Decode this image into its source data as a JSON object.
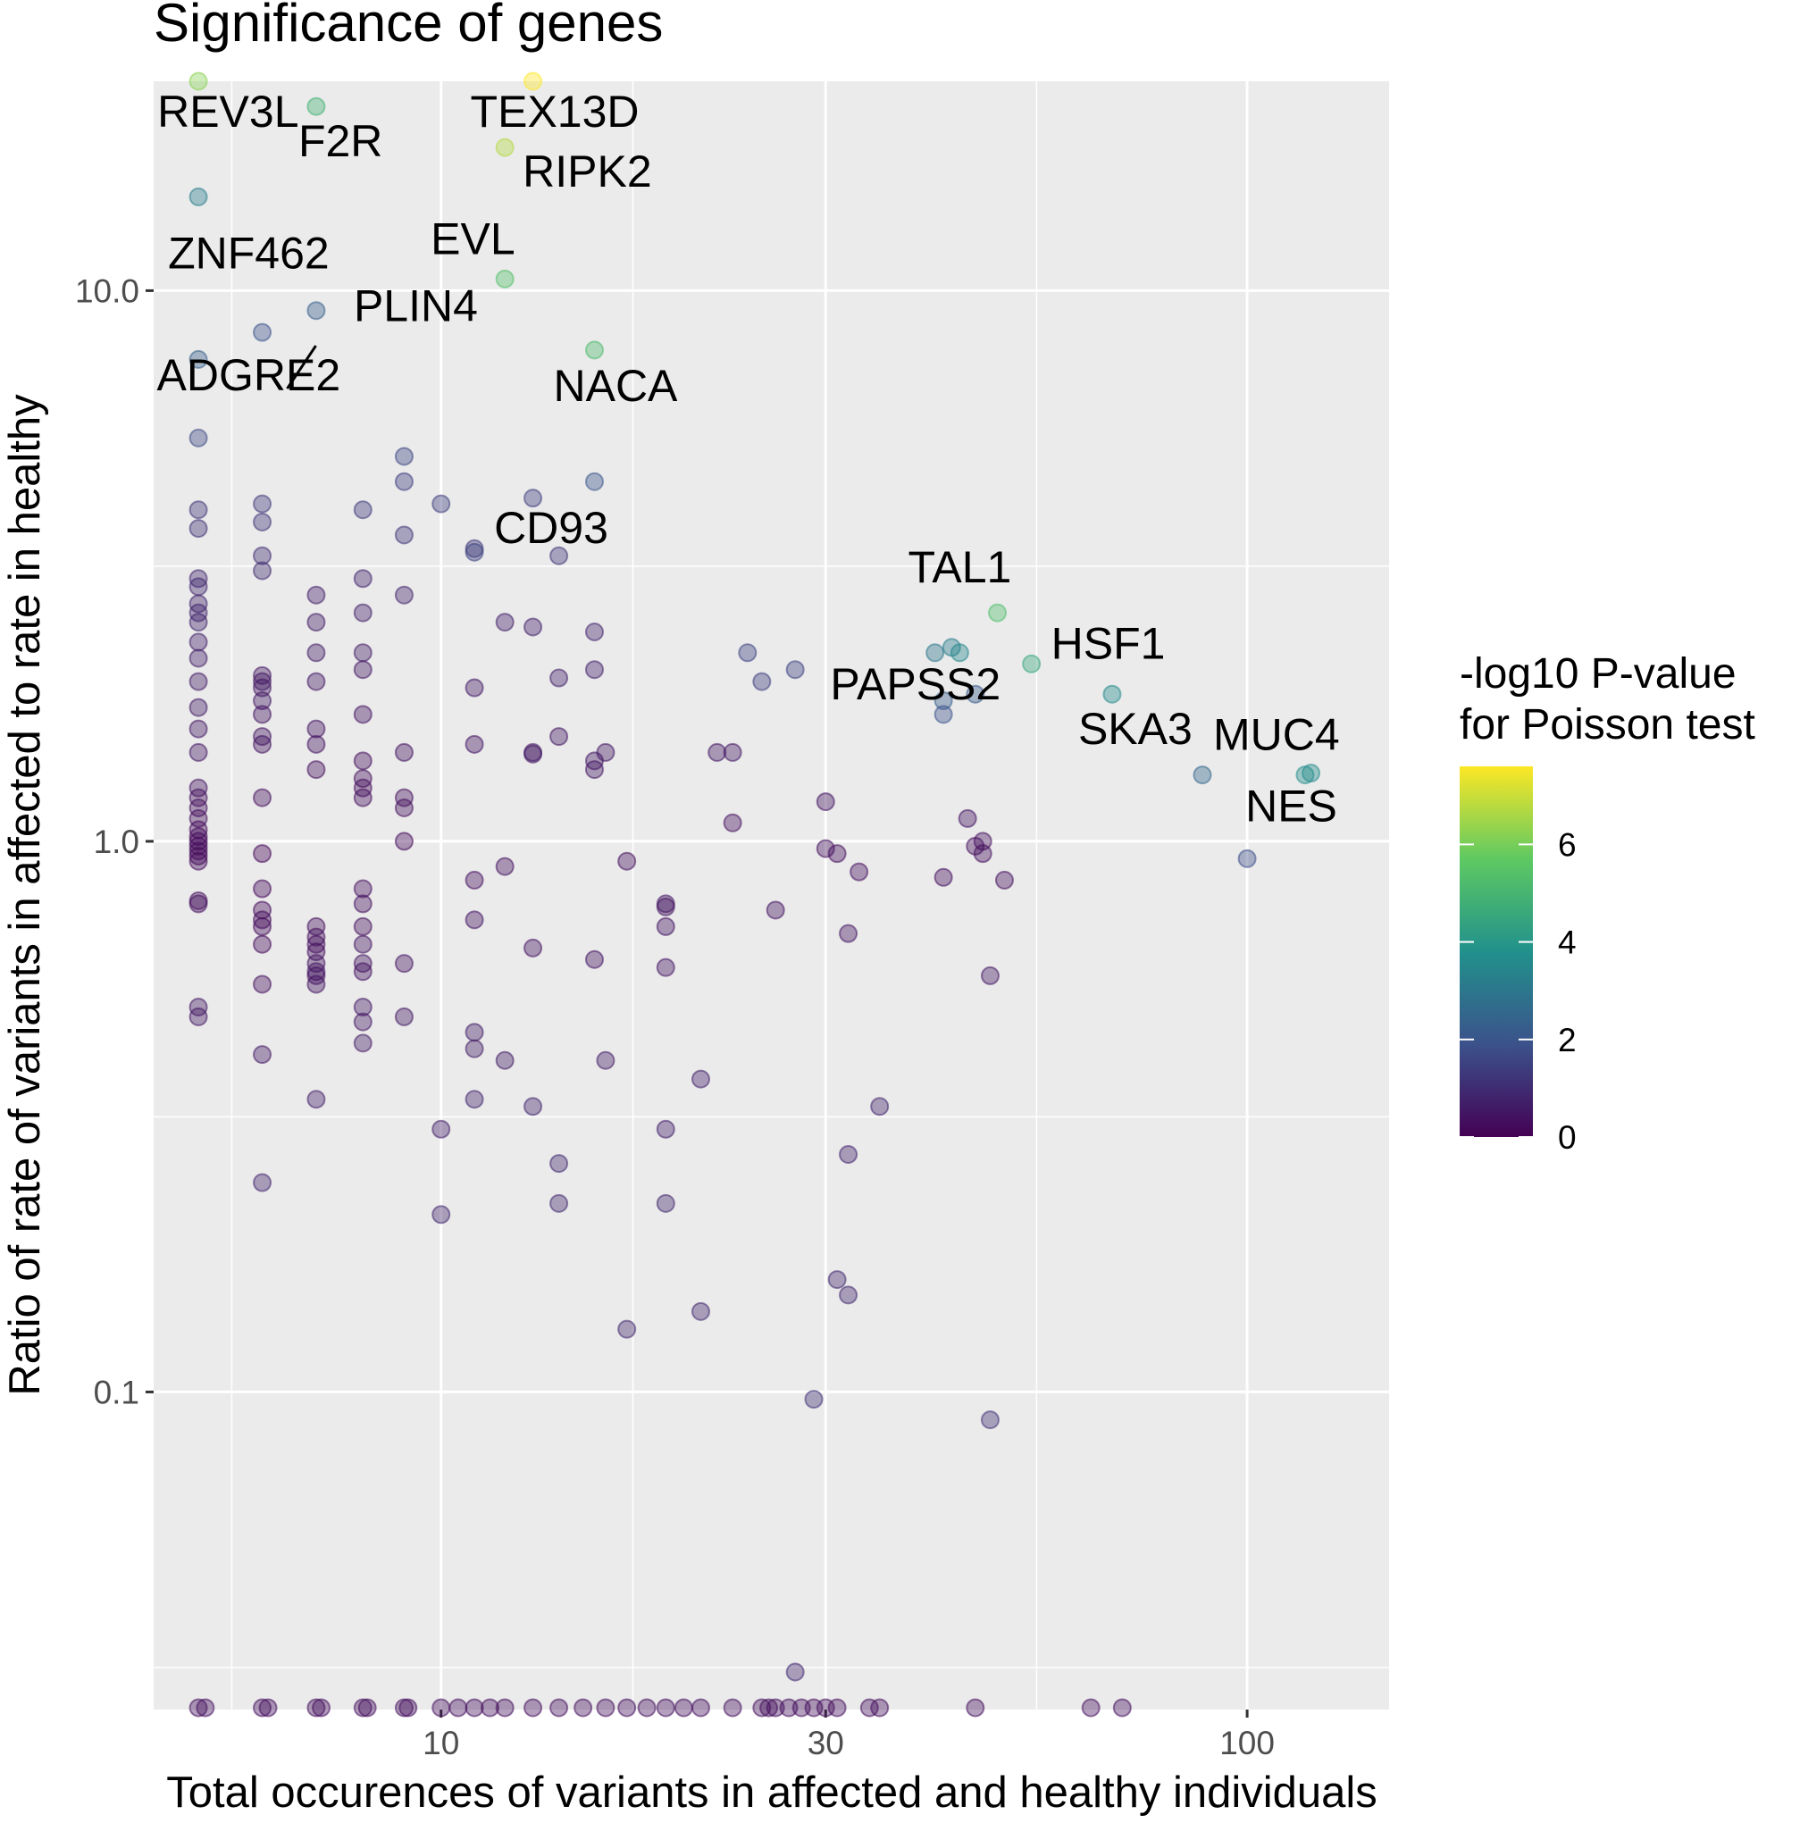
{
  "chart_data": {
    "type": "scatter",
    "title": "Significance of genes",
    "xlabel": "Total occurences of variants in affected and healthy individuals",
    "ylabel": "Ratio of rate of variants in affected to rate in healthy",
    "x_scale": "log10",
    "y_scale": "log10",
    "xlim": [
      4.4,
      150
    ],
    "ylim": [
      0.0265,
      24
    ],
    "x_ticks": [
      {
        "value": 10,
        "label": "10"
      },
      {
        "value": 30,
        "label": "30"
      },
      {
        "value": 100,
        "label": "100"
      }
    ],
    "y_ticks": [
      {
        "value": 0.1,
        "label": "0.1"
      },
      {
        "value": 1.0,
        "label": "1.0"
      },
      {
        "value": 10.0,
        "label": "10.0"
      }
    ],
    "x_minor_gridlines": [
      5.5,
      17.3,
      54.8
    ],
    "y_minor_gridlines": [
      0.0316,
      0.316,
      3.16
    ],
    "grid": true,
    "legend": {
      "title": "-log10 P-value\nfor Poisson test",
      "placement": "right",
      "type": "colorbar",
      "range": [
        0,
        7.6
      ],
      "ticks": [
        {
          "value": 0,
          "label": "0"
        },
        {
          "value": 2,
          "label": "2"
        },
        {
          "value": 4,
          "label": "4"
        },
        {
          "value": 6,
          "label": "6"
        }
      ],
      "colormap": [
        "#440154",
        "#3b528b",
        "#21918c",
        "#5ec962",
        "#fde725"
      ]
    },
    "floor_y": 0.0265,
    "floor_x": [
      5,
      5.1,
      6,
      6.1,
      7,
      7.1,
      8,
      8.1,
      9,
      9.1,
      10,
      10.5,
      11,
      11.5,
      12,
      13,
      14,
      15,
      16,
      17,
      18,
      19,
      20,
      21,
      23,
      25,
      25.5,
      26,
      27,
      28,
      29,
      30,
      31,
      34,
      35,
      46,
      64,
      70
    ],
    "labeled_points": [
      {
        "gene": "REV3L",
        "x": 5.0,
        "y": 24.0,
        "p": 6.2
      },
      {
        "gene": "TEX13D",
        "x": 13.0,
        "y": 24.0,
        "p": 7.6
      },
      {
        "gene": "F2R",
        "x": 7.0,
        "y": 21.6,
        "p": 4.9
      },
      {
        "gene": "RIPK2",
        "x": 12.0,
        "y": 18.2,
        "p": 6.7
      },
      {
        "gene": "ZNF462",
        "x": 5.0,
        "y": 14.8,
        "p": 3.2
      },
      {
        "gene": "EVL",
        "x": 12.0,
        "y": 10.5,
        "p": 5.4
      },
      {
        "gene": "PLIN4",
        "x": 7.0,
        "y": 9.2,
        "p": 2.3
      },
      {
        "gene": "ADGRE2",
        "x": 6.0,
        "y": 8.4,
        "p": 1.9
      },
      {
        "gene": "NACA",
        "x": 15.5,
        "y": 7.8,
        "p": 5.2
      },
      {
        "gene": "CD93",
        "x": 11.0,
        "y": 3.35,
        "p": 1.5
      },
      {
        "gene": "TAL1",
        "x": 49.0,
        "y": 2.6,
        "p": 5.3
      },
      {
        "gene": "HSF1",
        "x": 54.0,
        "y": 2.1,
        "p": 4.5
      },
      {
        "gene": "PAPSS2",
        "x": 44.0,
        "y": 2.2,
        "p": 3.5
      },
      {
        "gene": "SKA3",
        "x": 68.0,
        "y": 1.85,
        "p": 3.6
      },
      {
        "gene": "MUC4",
        "x": 118.0,
        "y": 1.32,
        "p": 3.7
      },
      {
        "gene": "NES",
        "x": 100.0,
        "y": 0.93,
        "p": 1.8
      }
    ],
    "points": [
      [
        5,
        4.0,
        1.2
      ],
      [
        5,
        3.7,
        1.1
      ],
      [
        5,
        3.0,
        0.9
      ],
      [
        5,
        2.9,
        0.9
      ],
      [
        5,
        2.7,
        0.8
      ],
      [
        5,
        2.6,
        0.8
      ],
      [
        5,
        2.5,
        0.8
      ],
      [
        5,
        2.3,
        0.7
      ],
      [
        5,
        2.15,
        0.7
      ],
      [
        5,
        1.95,
        0.6
      ],
      [
        5,
        1.75,
        0.6
      ],
      [
        5,
        1.6,
        0.5
      ],
      [
        5,
        1.45,
        0.5
      ],
      [
        5,
        1.25,
        0.4
      ],
      [
        5,
        1.2,
        0.3
      ],
      [
        5,
        1.15,
        0.3
      ],
      [
        5,
        1.1,
        0.3
      ],
      [
        5,
        1.05,
        0.2
      ],
      [
        5,
        1.02,
        0.2
      ],
      [
        5,
        1.0,
        0.2
      ],
      [
        5,
        0.98,
        0.2
      ],
      [
        5,
        0.96,
        0.2
      ],
      [
        5,
        0.94,
        0.2
      ],
      [
        5,
        0.92,
        0.2
      ],
      [
        5,
        0.78,
        0.3
      ],
      [
        5,
        0.77,
        0.3
      ],
      [
        5,
        0.5,
        0.5
      ],
      [
        5,
        0.48,
        0.5
      ],
      [
        5,
        7.5,
        2.3
      ],
      [
        5,
        5.4,
        1.7
      ],
      [
        6,
        4.1,
        1.3
      ],
      [
        6,
        3.8,
        1.2
      ],
      [
        6,
        3.3,
        1.0
      ],
      [
        6,
        3.1,
        1.0
      ],
      [
        6,
        2.0,
        0.5
      ],
      [
        6,
        1.95,
        0.5
      ],
      [
        6,
        1.9,
        0.5
      ],
      [
        6,
        1.8,
        0.5
      ],
      [
        6,
        1.7,
        0.4
      ],
      [
        6,
        1.55,
        0.4
      ],
      [
        6,
        1.5,
        0.4
      ],
      [
        6,
        1.2,
        0.3
      ],
      [
        6,
        0.95,
        0.1
      ],
      [
        6,
        0.82,
        0.2
      ],
      [
        6,
        0.75,
        0.2
      ],
      [
        6,
        0.72,
        0.2
      ],
      [
        6,
        0.7,
        0.2
      ],
      [
        6,
        0.65,
        0.2
      ],
      [
        6,
        0.55,
        0.3
      ],
      [
        6,
        0.41,
        0.5
      ],
      [
        6,
        0.24,
        0.8
      ],
      [
        7,
        2.8,
        0.7
      ],
      [
        7,
        2.5,
        0.6
      ],
      [
        7,
        2.2,
        0.6
      ],
      [
        7,
        1.95,
        0.5
      ],
      [
        7,
        1.6,
        0.4
      ],
      [
        7,
        1.5,
        0.4
      ],
      [
        7,
        1.35,
        0.3
      ],
      [
        7,
        0.7,
        0.3
      ],
      [
        7,
        0.67,
        0.3
      ],
      [
        7,
        0.65,
        0.3
      ],
      [
        7,
        0.63,
        0.3
      ],
      [
        7,
        0.6,
        0.4
      ],
      [
        7,
        0.58,
        0.4
      ],
      [
        7,
        0.57,
        0.4
      ],
      [
        7,
        0.55,
        0.4
      ],
      [
        7,
        0.34,
        0.7
      ],
      [
        8,
        3.0,
        0.8
      ],
      [
        8,
        2.6,
        0.7
      ],
      [
        8,
        2.2,
        0.6
      ],
      [
        8,
        2.05,
        0.5
      ],
      [
        8,
        1.7,
        0.4
      ],
      [
        8,
        1.4,
        0.3
      ],
      [
        8,
        1.3,
        0.3
      ],
      [
        8,
        1.25,
        0.3
      ],
      [
        8,
        1.2,
        0.3
      ],
      [
        8,
        0.82,
        0.3
      ],
      [
        8,
        0.77,
        0.3
      ],
      [
        8,
        0.7,
        0.3
      ],
      [
        8,
        0.65,
        0.4
      ],
      [
        8,
        0.6,
        0.4
      ],
      [
        8,
        0.58,
        0.4
      ],
      [
        8,
        0.5,
        0.5
      ],
      [
        8,
        0.47,
        0.5
      ],
      [
        8,
        0.43,
        0.6
      ],
      [
        8,
        4.0,
        1.3
      ],
      [
        9,
        5.0,
        1.6
      ],
      [
        9,
        4.5,
        1.4
      ],
      [
        9,
        3.6,
        1.2
      ],
      [
        9,
        2.8,
        0.8
      ],
      [
        9,
        1.45,
        0.4
      ],
      [
        9,
        1.2,
        0.3
      ],
      [
        9,
        1.15,
        0.3
      ],
      [
        9,
        1.0,
        0.2
      ],
      [
        9,
        0.6,
        0.4
      ],
      [
        9,
        0.48,
        0.5
      ],
      [
        10,
        4.1,
        1.4
      ],
      [
        10,
        0.3,
        0.7
      ],
      [
        10,
        0.21,
        0.9
      ],
      [
        11,
        3.4,
        1.2
      ],
      [
        11,
        1.9,
        0.5
      ],
      [
        11,
        1.5,
        0.4
      ],
      [
        11,
        0.85,
        0.3
      ],
      [
        11,
        0.72,
        0.4
      ],
      [
        11,
        0.45,
        0.6
      ],
      [
        11,
        0.42,
        0.6
      ],
      [
        11,
        0.34,
        0.8
      ],
      [
        12,
        2.5,
        0.7
      ],
      [
        12,
        0.9,
        0.3
      ],
      [
        12,
        0.4,
        0.6
      ],
      [
        13,
        4.2,
        1.4
      ],
      [
        13,
        2.45,
        0.7
      ],
      [
        13,
        1.45,
        0.5
      ],
      [
        13,
        1.44,
        0.5
      ],
      [
        13,
        0.64,
        0.4
      ],
      [
        13,
        0.33,
        0.8
      ],
      [
        14,
        3.3,
        1.2
      ],
      [
        14,
        1.98,
        0.7
      ],
      [
        14,
        1.55,
        0.5
      ],
      [
        14,
        0.26,
        0.9
      ],
      [
        14,
        0.22,
        0.9
      ],
      [
        15.5,
        4.5,
        2.0
      ],
      [
        15.5,
        2.4,
        0.8
      ],
      [
        15.5,
        2.05,
        0.7
      ],
      [
        15.5,
        1.4,
        0.5
      ],
      [
        15.5,
        1.35,
        0.5
      ],
      [
        15.5,
        0.61,
        0.4
      ],
      [
        16,
        1.45,
        0.5
      ],
      [
        16,
        0.4,
        0.6
      ],
      [
        17,
        0.92,
        0.3
      ],
      [
        17,
        0.13,
        0.9
      ],
      [
        19,
        0.77,
        0.4
      ],
      [
        19,
        0.76,
        0.4
      ],
      [
        19,
        0.7,
        0.4
      ],
      [
        19,
        0.59,
        0.4
      ],
      [
        19,
        0.3,
        0.7
      ],
      [
        19,
        0.22,
        0.9
      ],
      [
        21,
        0.37,
        0.7
      ],
      [
        21,
        0.14,
        0.9
      ],
      [
        22,
        1.45,
        0.5
      ],
      [
        23,
        1.45,
        0.5
      ],
      [
        23,
        1.08,
        0.3
      ],
      [
        24,
        2.2,
        1.5
      ],
      [
        25,
        1.95,
        1.4
      ],
      [
        26,
        0.75,
        0.4
      ],
      [
        27.5,
        2.05,
        1.5
      ],
      [
        27.5,
        0.031,
        0.9
      ],
      [
        29,
        0.097,
        1.1
      ],
      [
        30,
        1.18,
        0.4
      ],
      [
        30,
        0.97,
        0.3
      ],
      [
        31,
        0.95,
        0.3
      ],
      [
        32,
        0.68,
        0.4
      ],
      [
        32,
        0.27,
        0.8
      ],
      [
        31,
        0.16,
        0.9
      ],
      [
        32,
        0.15,
        0.9
      ],
      [
        33,
        0.88,
        0.3
      ],
      [
        35,
        0.33,
        0.8
      ],
      [
        41,
        2.2,
        3.0
      ],
      [
        42,
        1.8,
        2.3
      ],
      [
        42,
        1.7,
        1.9
      ],
      [
        42,
        0.86,
        0.3
      ],
      [
        43,
        2.25,
        3.2
      ],
      [
        45,
        1.1,
        0.4
      ],
      [
        46,
        0.98,
        0.3
      ],
      [
        47,
        0.95,
        0.3
      ],
      [
        47,
        1.0,
        0.3
      ],
      [
        50,
        0.85,
        0.3
      ],
      [
        48,
        0.57,
        0.5
      ],
      [
        48,
        0.089,
        1.1
      ],
      [
        46,
        1.85,
        2.1
      ],
      [
        88,
        1.32,
        2.5
      ],
      [
        120,
        1.33,
        3.6
      ]
    ]
  }
}
